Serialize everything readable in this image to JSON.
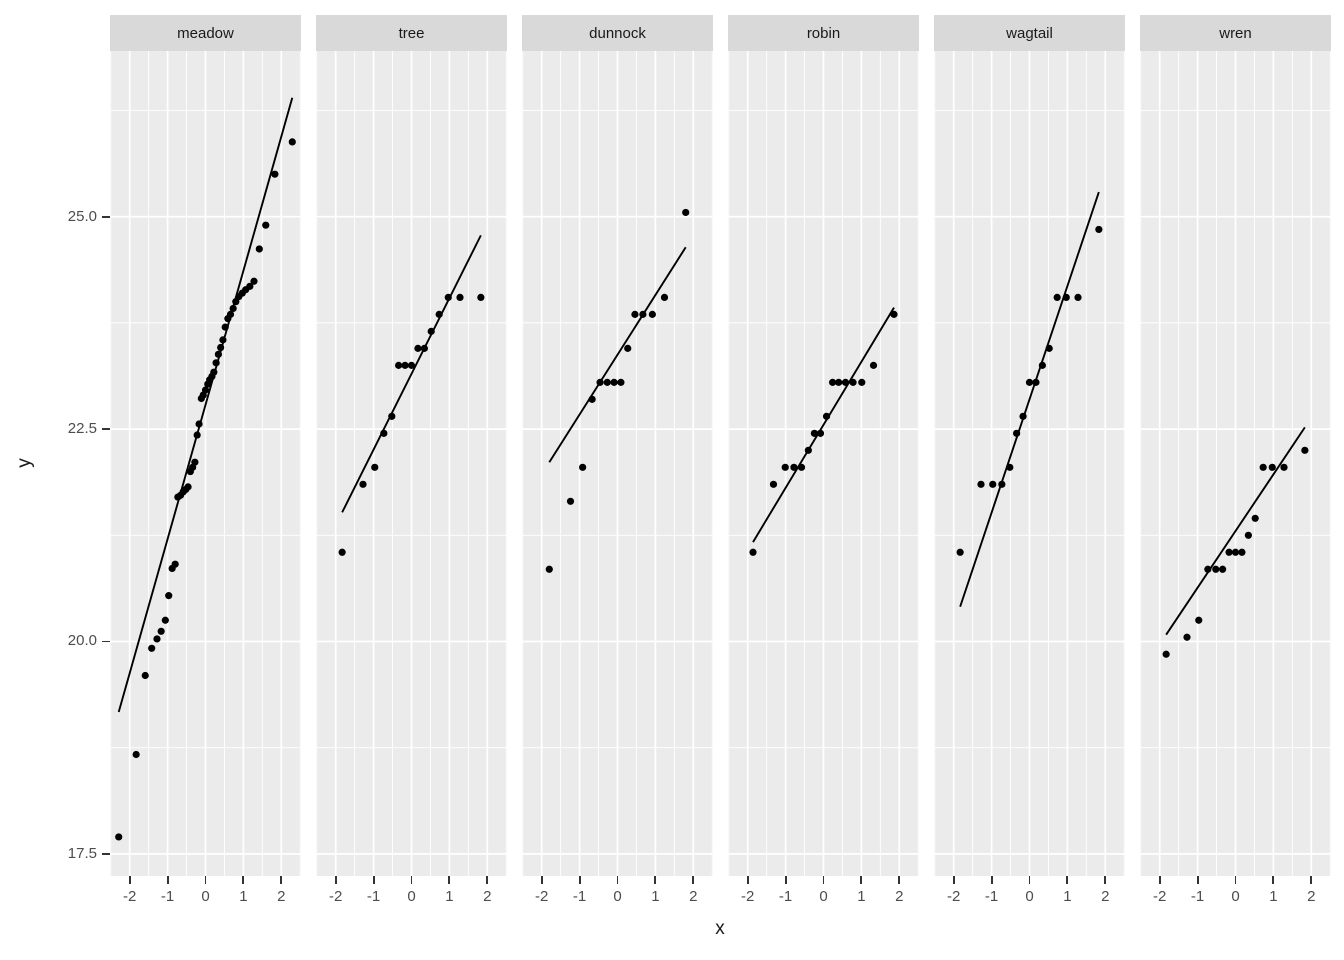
{
  "chart_data": {
    "type": "scatter",
    "subtype": "qq-plot-with-fit-line",
    "title": "",
    "xlabel": "x",
    "ylabel": "y",
    "grid": "on",
    "x_tick_labels": [
      "-2",
      "-1",
      "0",
      "1",
      "2"
    ],
    "x_ticks": [
      -2,
      -1,
      0,
      1,
      2
    ],
    "y_tick_labels": [
      "25.0",
      "22.5",
      "20.0",
      "17.5"
    ],
    "y_ticks": [
      25.0,
      22.5,
      20.0,
      17.5
    ],
    "x_minor_ticks": [
      -2.5,
      -1.5,
      -0.5,
      0.5,
      1.5,
      2.5
    ],
    "y_minor_ticks": [
      18.75,
      21.25,
      23.75,
      26.25
    ],
    "x_range": [
      -2.52,
      2.52
    ],
    "y_range": [
      17.24,
      26.95
    ],
    "colors": {
      "panel_bg": "#ebebeb",
      "strip_bg": "#d9d9d9",
      "gridline": "#ffffff",
      "point": "#000000",
      "line": "#000000",
      "axis_text": "#4d4d4d",
      "title_text": "#1a1a1a",
      "tick_mark": "#333333"
    },
    "facets": [
      {
        "label": "meadow",
        "points": [
          [
            -2.29,
            17.7
          ],
          [
            -1.83,
            18.67
          ],
          [
            -1.59,
            19.6
          ],
          [
            -1.42,
            19.92
          ],
          [
            -1.28,
            20.03
          ],
          [
            -1.17,
            20.12
          ],
          [
            -1.06,
            20.25
          ],
          [
            -0.97,
            20.54
          ],
          [
            -0.88,
            20.86
          ],
          [
            -0.8,
            20.91
          ],
          [
            -0.73,
            21.7
          ],
          [
            -0.66,
            21.72
          ],
          [
            -0.59,
            21.76
          ],
          [
            -0.52,
            21.79
          ],
          [
            -0.46,
            21.82
          ],
          [
            -0.4,
            22.0
          ],
          [
            -0.34,
            22.05
          ],
          [
            -0.28,
            22.11
          ],
          [
            -0.22,
            22.43
          ],
          [
            -0.17,
            22.56
          ],
          [
            -0.11,
            22.86
          ],
          [
            -0.06,
            22.9
          ],
          [
            0.0,
            22.96
          ],
          [
            0.06,
            23.03
          ],
          [
            0.11,
            23.08
          ],
          [
            0.17,
            23.12
          ],
          [
            0.22,
            23.17
          ],
          [
            0.28,
            23.28
          ],
          [
            0.34,
            23.38
          ],
          [
            0.4,
            23.46
          ],
          [
            0.46,
            23.55
          ],
          [
            0.52,
            23.7
          ],
          [
            0.59,
            23.8
          ],
          [
            0.66,
            23.85
          ],
          [
            0.73,
            23.92
          ],
          [
            0.8,
            24.0
          ],
          [
            0.88,
            24.06
          ],
          [
            0.97,
            24.1
          ],
          [
            1.06,
            24.14
          ],
          [
            1.17,
            24.18
          ],
          [
            1.28,
            24.24
          ],
          [
            1.42,
            24.62
          ],
          [
            1.59,
            24.9
          ],
          [
            1.83,
            25.5
          ],
          [
            2.29,
            25.88
          ]
        ],
        "line": {
          "x1": -2.29,
          "y1": 19.17,
          "x2": 2.29,
          "y2": 26.4
        }
      },
      {
        "label": "tree",
        "points": [
          [
            -1.83,
            21.05
          ],
          [
            -1.28,
            21.85
          ],
          [
            -0.97,
            22.05
          ],
          [
            -0.73,
            22.45
          ],
          [
            -0.52,
            22.65
          ],
          [
            -0.34,
            23.25
          ],
          [
            -0.17,
            23.25
          ],
          [
            0,
            23.25
          ],
          [
            0.17,
            23.45
          ],
          [
            0.34,
            23.45
          ],
          [
            0.52,
            23.65
          ],
          [
            0.73,
            23.85
          ],
          [
            0.97,
            24.05
          ],
          [
            1.28,
            24.05
          ],
          [
            1.83,
            24.05
          ]
        ],
        "line": {
          "x1": -1.83,
          "y1": 21.52,
          "x2": 1.83,
          "y2": 24.78
        }
      },
      {
        "label": "dunnock",
        "points": [
          [
            -1.8,
            20.85
          ],
          [
            -1.24,
            21.65
          ],
          [
            -0.92,
            22.05
          ],
          [
            -0.67,
            22.85
          ],
          [
            -0.46,
            23.05
          ],
          [
            -0.27,
            23.05
          ],
          [
            -0.09,
            23.05
          ],
          [
            0.09,
            23.05
          ],
          [
            0.27,
            23.45
          ],
          [
            0.46,
            23.85
          ],
          [
            0.67,
            23.85
          ],
          [
            0.92,
            23.85
          ],
          [
            1.24,
            24.05
          ],
          [
            1.8,
            25.05
          ]
        ],
        "line": {
          "x1": -1.8,
          "y1": 22.11,
          "x2": 1.8,
          "y2": 24.64
        }
      },
      {
        "label": "robin",
        "points": [
          [
            -1.86,
            21.05
          ],
          [
            -1.32,
            21.85
          ],
          [
            -1.01,
            22.05
          ],
          [
            -0.78,
            22.05
          ],
          [
            -0.58,
            22.05
          ],
          [
            -0.4,
            22.25
          ],
          [
            -0.24,
            22.45
          ],
          [
            -0.08,
            22.45
          ],
          [
            0.08,
            22.65
          ],
          [
            0.24,
            23.05
          ],
          [
            0.4,
            23.05
          ],
          [
            0.58,
            23.05
          ],
          [
            0.78,
            23.05
          ],
          [
            1.01,
            23.05
          ],
          [
            1.32,
            23.25
          ],
          [
            1.86,
            23.85
          ]
        ],
        "line": {
          "x1": -1.86,
          "y1": 21.17,
          "x2": 1.86,
          "y2": 23.93
        }
      },
      {
        "label": "wagtail",
        "points": [
          [
            -1.83,
            21.05
          ],
          [
            -1.28,
            21.85
          ],
          [
            -0.97,
            21.85
          ],
          [
            -0.73,
            21.85
          ],
          [
            -0.52,
            22.05
          ],
          [
            -0.34,
            22.45
          ],
          [
            -0.17,
            22.65
          ],
          [
            0,
            23.05
          ],
          [
            0.17,
            23.05
          ],
          [
            0.34,
            23.25
          ],
          [
            0.52,
            23.45
          ],
          [
            0.73,
            24.05
          ],
          [
            0.97,
            24.05
          ],
          [
            1.28,
            24.05
          ],
          [
            1.83,
            24.85
          ]
        ],
        "line": {
          "x1": -1.83,
          "y1": 20.41,
          "x2": 1.83,
          "y2": 25.29
        }
      },
      {
        "label": "wren",
        "points": [
          [
            -1.83,
            19.85
          ],
          [
            -1.28,
            20.05
          ],
          [
            -0.97,
            20.25
          ],
          [
            -0.73,
            20.85
          ],
          [
            -0.52,
            20.85
          ],
          [
            -0.34,
            20.85
          ],
          [
            -0.17,
            21.05
          ],
          [
            0,
            21.05
          ],
          [
            0.17,
            21.05
          ],
          [
            0.34,
            21.25
          ],
          [
            0.52,
            21.45
          ],
          [
            0.73,
            22.05
          ],
          [
            0.97,
            22.05
          ],
          [
            1.28,
            22.05
          ],
          [
            1.83,
            22.25
          ]
        ],
        "line": {
          "x1": -1.83,
          "y1": 20.08,
          "x2": 1.83,
          "y2": 22.52
        }
      }
    ]
  }
}
